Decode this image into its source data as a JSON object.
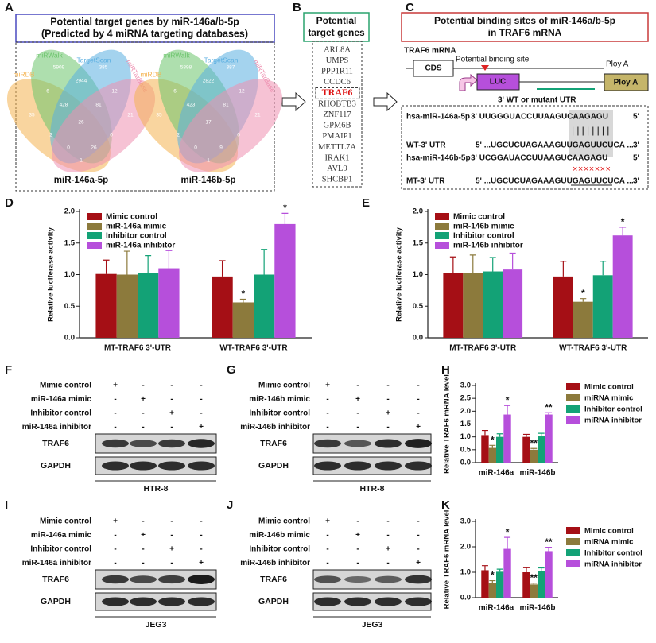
{
  "panels": {
    "A": {
      "label": "A",
      "title": "Potential target genes by miR-146a/b-5p",
      "subtitle": "(Predicted by 4 miRNA targeting databases)",
      "set_colors": [
        "#f4b350",
        "#6cc46c",
        "#5aaee0",
        "#ee8fb0"
      ],
      "venns": [
        {
          "caption": "miR-146a-5p",
          "sets": [
            "miRDB",
            "miRWalk",
            "TargetScan",
            "miRTarBase"
          ],
          "counts": [
            35,
            5909,
            385,
            21,
            6,
            2944,
            12,
            428,
            81,
            26,
            2,
            0,
            0,
            26,
            1
          ]
        },
        {
          "caption": "miR-146b-5p",
          "sets": [
            "miRDB",
            "miRWalk",
            "TargetScan",
            "miRTarBase"
          ],
          "counts": [
            35,
            5898,
            387,
            21,
            6,
            2822,
            12,
            423,
            81,
            17,
            2,
            0,
            0,
            9,
            1
          ]
        }
      ]
    },
    "B": {
      "label": "B",
      "title": [
        "Potential",
        "target genes"
      ],
      "highlight": 4,
      "genes": [
        "ARL8A",
        "UMPS",
        "PPP1R11",
        "CCDC6",
        "TRAF6",
        "RHOBTB3",
        "ZNF117",
        "GPM6B",
        "PMAIP1",
        "METTL7A",
        "IRAK1",
        "AVL9",
        "SHCBP1"
      ]
    },
    "C": {
      "label": "C",
      "title": [
        "Potential binding sites of miR-146a/b-5p",
        "in TRAF6 mRNA"
      ],
      "construct": {
        "mrna": "TRAF6 mRNA",
        "cds": "CDS",
        "site": "Potential binding site",
        "polya": "Ploy A",
        "luc": "LUC",
        "polya_box": "Ploy A",
        "utr": "3' WT or mutant UTR"
      },
      "alignment": [
        {
          "name": "hsa-miR-146a-5p",
          "seq": "3' UUGGGUACCUUAAGUCAAGAGU",
          "end": "5'"
        },
        {
          "name": "WT-3' UTR",
          "seq": "5' ...UGCUCUAGAAAGUUGAGUUCUCA ...",
          "end": "3'"
        },
        {
          "name": "hsa-miR-146b-5p",
          "seq": "3' UCGGAUACCUUAAGUCAAGAGU",
          "end": "5'"
        },
        {
          "name": "MT-3' UTR",
          "seq": "5' ...UGCUCUAGAAAGUUGAGUUCUCA ...",
          "end": "3'"
        }
      ],
      "pairing": "||||||||",
      "mutation": "×××××××"
    },
    "blots": [
      {
        "label": "F",
        "conditions": [
          {
            "name": "Mimic control",
            "signs": [
              "+",
              "-",
              "-",
              "-"
            ]
          },
          {
            "name": "miR-146a mimic",
            "signs": [
              "-",
              "+",
              "-",
              "-"
            ]
          },
          {
            "name": "Inhibitor control",
            "signs": [
              "-",
              "-",
              "+",
              "-"
            ]
          },
          {
            "name": "miR-146a inhibitor",
            "signs": [
              "-",
              "-",
              "-",
              "+"
            ]
          }
        ],
        "bands": [
          "TRAF6",
          "GAPDH"
        ],
        "cell_line": "HTR-8"
      },
      {
        "label": "G",
        "conditions": [
          {
            "name": "Mimic control",
            "signs": [
              "+",
              "-",
              "-",
              "-"
            ]
          },
          {
            "name": "miR-146b mimic",
            "signs": [
              "-",
              "+",
              "-",
              "-"
            ]
          },
          {
            "name": "Inhibitor control",
            "signs": [
              "-",
              "-",
              "+",
              "-"
            ]
          },
          {
            "name": "miR-146b inhibitor",
            "signs": [
              "-",
              "-",
              "-",
              "+"
            ]
          }
        ],
        "bands": [
          "TRAF6",
          "GAPDH"
        ],
        "cell_line": "HTR-8"
      },
      {
        "label": "I",
        "conditions": [
          {
            "name": "Mimic control",
            "signs": [
              "+",
              "-",
              "-",
              "-"
            ]
          },
          {
            "name": "miR-146a mimic",
            "signs": [
              "-",
              "+",
              "-",
              "-"
            ]
          },
          {
            "name": "Inhibitor control",
            "signs": [
              "-",
              "-",
              "+",
              "-"
            ]
          },
          {
            "name": "miR-146a inhibitor",
            "signs": [
              "-",
              "-",
              "-",
              "+"
            ]
          }
        ],
        "bands": [
          "TRAF6",
          "GAPDH"
        ],
        "cell_line": "JEG3"
      },
      {
        "label": "J",
        "conditions": [
          {
            "name": "Mimic control",
            "signs": [
              "+",
              "-",
              "-",
              "-"
            ]
          },
          {
            "name": "miR-146b mimic",
            "signs": [
              "-",
              "+",
              "-",
              "-"
            ]
          },
          {
            "name": "Inhibitor control",
            "signs": [
              "-",
              "-",
              "+",
              "-"
            ]
          },
          {
            "name": "miR-146b inhibitor",
            "signs": [
              "-",
              "-",
              "-",
              "+"
            ]
          }
        ],
        "bands": [
          "TRAF6",
          "GAPDH"
        ],
        "cell_line": "JEG3"
      }
    ]
  },
  "chart_data": [
    {
      "type": "bar",
      "panel_label": "D",
      "y_label": "Relative luciferase activity",
      "legend": "upper left",
      "categories": [
        "MT-TRAF6 3'-UTR",
        "WT-TRAF6 3'-UTR"
      ],
      "ylim": [
        0,
        2
      ],
      "yticks": [
        {
          "value": 0,
          "label": "0.0"
        },
        {
          "value": 0.5,
          "label": "0.5"
        },
        {
          "value": 1,
          "label": "1.0"
        },
        {
          "value": 1.5,
          "label": "1.5"
        },
        {
          "value": 2,
          "label": "2.0"
        }
      ],
      "series": [
        {
          "name": "Mimic control",
          "color": "#a50f15",
          "values": [
            1.01,
            0.97
          ],
          "errors": [
            0.22,
            0.25
          ],
          "significance": [
            null,
            null
          ]
        },
        {
          "name": "miR-146a mimic",
          "color": "#8c7a3c",
          "values": [
            1.0,
            0.56
          ],
          "errors": [
            0.37,
            0.05
          ],
          "significance": [
            null,
            "*"
          ]
        },
        {
          "name": "Inhibitor control",
          "color": "#13a276",
          "values": [
            1.03,
            1.0
          ],
          "errors": [
            0.27,
            0.4
          ],
          "significance": [
            null,
            null
          ]
        },
        {
          "name": "miR-146a inhibitor",
          "color": "#b64fdb",
          "values": [
            1.1,
            1.8
          ],
          "errors": [
            0.28,
            0.17
          ],
          "significance": [
            null,
            "*"
          ]
        }
      ]
    },
    {
      "type": "bar",
      "panel_label": "E",
      "y_label": "Relative luciferase activity",
      "legend": "upper left",
      "categories": [
        "MT-TRAF6 3'-UTR",
        "WT-TRAF6 3'-UTR"
      ],
      "ylim": [
        0,
        2
      ],
      "yticks": [
        {
          "value": 0,
          "label": "0.0"
        },
        {
          "value": 0.5,
          "label": "0.5"
        },
        {
          "value": 1,
          "label": "1.0"
        },
        {
          "value": 1.5,
          "label": "1.5"
        },
        {
          "value": 2,
          "label": "2.0"
        }
      ],
      "series": [
        {
          "name": "Mimic control",
          "color": "#a50f15",
          "values": [
            1.03,
            0.97
          ],
          "errors": [
            0.25,
            0.24
          ],
          "significance": [
            null,
            null
          ]
        },
        {
          "name": "miR-146b mimic",
          "color": "#8c7a3c",
          "values": [
            1.03,
            0.57
          ],
          "errors": [
            0.28,
            0.05
          ],
          "significance": [
            null,
            "*"
          ]
        },
        {
          "name": "Inhibitor control",
          "color": "#13a276",
          "values": [
            1.05,
            0.99
          ],
          "errors": [
            0.22,
            0.22
          ],
          "significance": [
            null,
            null
          ]
        },
        {
          "name": "miR-146b inhibitor",
          "color": "#b64fdb",
          "values": [
            1.08,
            1.62
          ],
          "errors": [
            0.26,
            0.13
          ],
          "significance": [
            null,
            "*"
          ]
        }
      ]
    },
    {
      "type": "bar",
      "panel_label": "H",
      "y_label": "Relative TRAF6 mRNA  level",
      "legend": "right",
      "categories": [
        "miR-146a",
        "miR-146b"
      ],
      "ylim": [
        0,
        3
      ],
      "yticks": [
        {
          "value": 0,
          "label": "0.0"
        },
        {
          "value": 0.5,
          "label": "0.5"
        },
        {
          "value": 1,
          "label": "1.0"
        },
        {
          "value": 1.5,
          "label": "1.5"
        },
        {
          "value": 2,
          "label": "2.0"
        },
        {
          "value": 2.5,
          "label": "2.5"
        },
        {
          "value": 3,
          "label": "3.0"
        }
      ],
      "series": [
        {
          "name": "Mimic control",
          "color": "#a50f15",
          "values": [
            1.07,
            1.0
          ],
          "errors": [
            0.18,
            0.1
          ],
          "significance": [
            null,
            null
          ]
        },
        {
          "name": "miRNA mimic",
          "color": "#8c7a3c",
          "values": [
            0.57,
            0.5
          ],
          "errors": [
            0.1,
            0.05
          ],
          "significance": [
            "*",
            "**"
          ]
        },
        {
          "name": "Inhibitor control",
          "color": "#13a276",
          "values": [
            1.0,
            1.02
          ],
          "errors": [
            0.12,
            0.12
          ],
          "significance": [
            null,
            null
          ]
        },
        {
          "name": "miRNA inhibitor",
          "color": "#b64fdb",
          "values": [
            1.87,
            1.87
          ],
          "errors": [
            0.35,
            0.07
          ],
          "significance": [
            "*",
            "**"
          ]
        }
      ]
    },
    {
      "type": "bar",
      "panel_label": "K",
      "y_label": "Relative TRAF6 mRNA  level",
      "legend": "right",
      "categories": [
        "miR-146a",
        "miR-146b"
      ],
      "ylim": [
        0,
        3
      ],
      "yticks": [
        {
          "value": 0,
          "label": "0.0"
        },
        {
          "value": 1,
          "label": "1.0"
        },
        {
          "value": 2,
          "label": "2.0"
        },
        {
          "value": 3,
          "label": "3.0"
        }
      ],
      "series": [
        {
          "name": "Mimic control",
          "color": "#a50f15",
          "values": [
            1.08,
            1.0
          ],
          "errors": [
            0.18,
            0.18
          ],
          "significance": [
            null,
            null
          ]
        },
        {
          "name": "miRNA mimic",
          "color": "#8c7a3c",
          "values": [
            0.57,
            0.52
          ],
          "errors": [
            0.1,
            0.05
          ],
          "significance": [
            "*",
            "**"
          ]
        },
        {
          "name": "Inhibitor control",
          "color": "#13a276",
          "values": [
            1.02,
            1.05
          ],
          "errors": [
            0.1,
            0.12
          ],
          "significance": [
            null,
            null
          ]
        },
        {
          "name": "miRNA inhibitor",
          "color": "#b64fdb",
          "values": [
            1.92,
            1.83
          ],
          "errors": [
            0.45,
            0.15
          ],
          "significance": [
            "*",
            "**"
          ]
        }
      ]
    }
  ]
}
